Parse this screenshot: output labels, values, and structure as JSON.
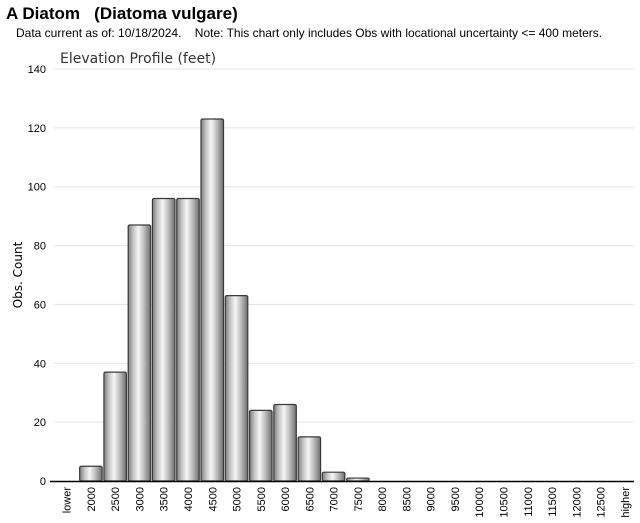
{
  "header": {
    "title": "A Diatom   (Diatoma vulgare)",
    "note": "Data current as of: 10/18/2024.    Note: This chart only includes Obs with locational uncertainty <= 400 meters."
  },
  "chart_data": {
    "type": "bar",
    "title": "Elevation Profile (feet)",
    "xlabel": "",
    "ylabel": "Obs. Count",
    "ylim": [
      0,
      140
    ],
    "yticks": [
      0,
      20,
      40,
      60,
      80,
      100,
      120,
      140
    ],
    "grid": true,
    "categories": [
      "lower",
      "2000",
      "2500",
      "3000",
      "3500",
      "4000",
      "4500",
      "5000",
      "5500",
      "6000",
      "6500",
      "7000",
      "7500",
      "8000",
      "8500",
      "9000",
      "9500",
      "10000",
      "10500",
      "11000",
      "11500",
      "12000",
      "12500",
      "higher"
    ],
    "values": [
      0,
      5,
      37,
      87,
      96,
      96,
      123,
      63,
      24,
      26,
      15,
      3,
      1,
      0,
      0,
      0,
      0,
      0,
      0,
      0,
      0,
      0,
      0,
      0
    ]
  }
}
